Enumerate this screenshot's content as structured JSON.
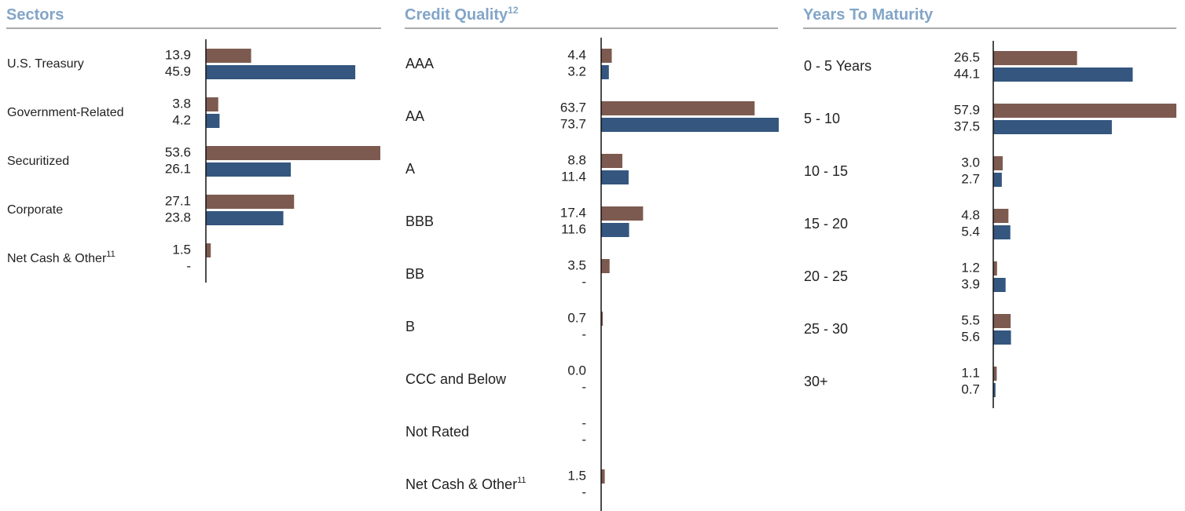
{
  "chart_data": [
    {
      "type": "bar",
      "orientation": "horizontal",
      "title": "Sectors",
      "categories": [
        "U.S. Treasury",
        "Government-Related",
        "Securitized",
        "Corporate",
        "Net Cash & Other"
      ],
      "category_notes": [
        null,
        null,
        null,
        null,
        "11"
      ],
      "series": [
        {
          "color": "#7d5a50",
          "values": [
            13.9,
            3.8,
            53.6,
            27.1,
            1.5
          ],
          "value_labels": [
            "13.9",
            "3.8",
            "53.6",
            "27.1",
            "1.5"
          ]
        },
        {
          "color": "#34567f",
          "values": [
            45.9,
            4.2,
            26.1,
            23.8,
            null
          ],
          "value_labels": [
            "45.9",
            "4.2",
            "26.1",
            "23.8",
            "-"
          ]
        }
      ],
      "xlim": [
        0,
        53.6
      ]
    },
    {
      "type": "bar",
      "orientation": "horizontal",
      "title": "Credit Quality",
      "title_note": "12",
      "categories": [
        "AAA",
        "AA",
        "A",
        "BBB",
        "BB",
        "B",
        "CCC and Below",
        "Not Rated",
        "Net Cash & Other"
      ],
      "category_notes": [
        null,
        null,
        null,
        null,
        null,
        null,
        null,
        null,
        "11"
      ],
      "series": [
        {
          "color": "#7d5a50",
          "values": [
            4.4,
            63.7,
            8.8,
            17.4,
            3.5,
            0.7,
            0,
            null,
            1.5
          ],
          "value_labels": [
            "4.4",
            "63.7",
            "8.8",
            "17.4",
            "3.5",
            "0.7",
            "0.0",
            "-",
            "1.5"
          ]
        },
        {
          "color": "#34567f",
          "values": [
            3.2,
            73.7,
            11.4,
            11.6,
            null,
            null,
            null,
            null,
            null
          ],
          "value_labels": [
            "3.2",
            "73.7",
            "11.4",
            "11.6",
            "-",
            "-",
            "-",
            "-",
            "-"
          ]
        }
      ],
      "xlim": [
        0,
        73.7
      ]
    },
    {
      "type": "bar",
      "orientation": "horizontal",
      "title": "Years To Maturity",
      "categories": [
        "0 - 5 Years",
        "5 - 10",
        "10 - 15",
        "15 - 20",
        "20 - 25",
        "25 - 30",
        "30+"
      ],
      "series": [
        {
          "color": "#7d5a50",
          "values": [
            26.5,
            57.9,
            3.0,
            4.8,
            1.2,
            5.5,
            1.1
          ],
          "value_labels": [
            "26.5",
            "57.9",
            "3.0",
            "4.8",
            "1.2",
            "5.5",
            "1.1"
          ]
        },
        {
          "color": "#34567f",
          "values": [
            44.1,
            37.5,
            2.7,
            5.4,
            3.9,
            5.6,
            0.7
          ],
          "value_labels": [
            "44.1",
            "37.5",
            "2.7",
            "5.4",
            "3.9",
            "5.6",
            "0.7"
          ]
        }
      ],
      "xlim": [
        0,
        57.9
      ]
    }
  ]
}
